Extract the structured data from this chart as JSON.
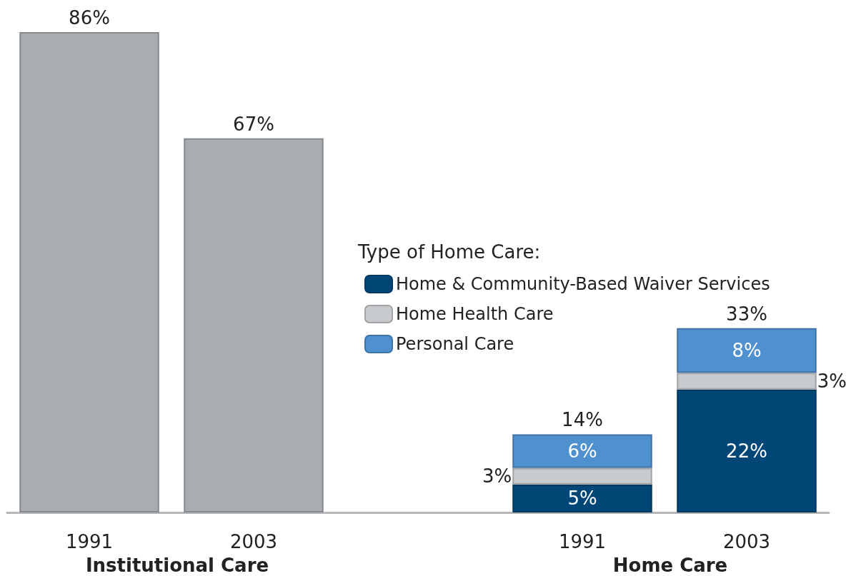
{
  "chart_data": {
    "type": "bar",
    "stacked": true,
    "categories": [
      "1991",
      "2003",
      null,
      "1991",
      "2003"
    ],
    "series": [
      {
        "color": "#a9acb0",
        "values": [
          86,
          67,
          null,
          null,
          null
        ],
        "value_labels": [
          "86%",
          "67%",
          null,
          null,
          null
        ]
      },
      {
        "name": "Home & Community-Based Waiver Services",
        "color": "#004677",
        "values": [
          null,
          null,
          null,
          5,
          22
        ],
        "value_labels": [
          null,
          null,
          null,
          "5%",
          "22%"
        ]
      },
      {
        "name": "Home Health Care",
        "color": "#c8cbce",
        "values": [
          null,
          null,
          null,
          3,
          3
        ],
        "value_labels": [
          null,
          null,
          null,
          "3%",
          "3%"
        ]
      },
      {
        "name": "Personal Care",
        "color": "#4f90ce",
        "values": [
          null,
          null,
          null,
          6,
          8
        ],
        "value_labels": [
          null,
          null,
          null,
          "6%",
          "8%"
        ]
      }
    ],
    "totals": [
      null,
      null,
      null,
      "14%",
      "33%"
    ],
    "legend": "right",
    "legend_title": "Type of Home Care:",
    "tick_labels": "x",
    "grid": false,
    "annotations": [
      "Institutional Care",
      "Home Care"
    ]
  }
}
